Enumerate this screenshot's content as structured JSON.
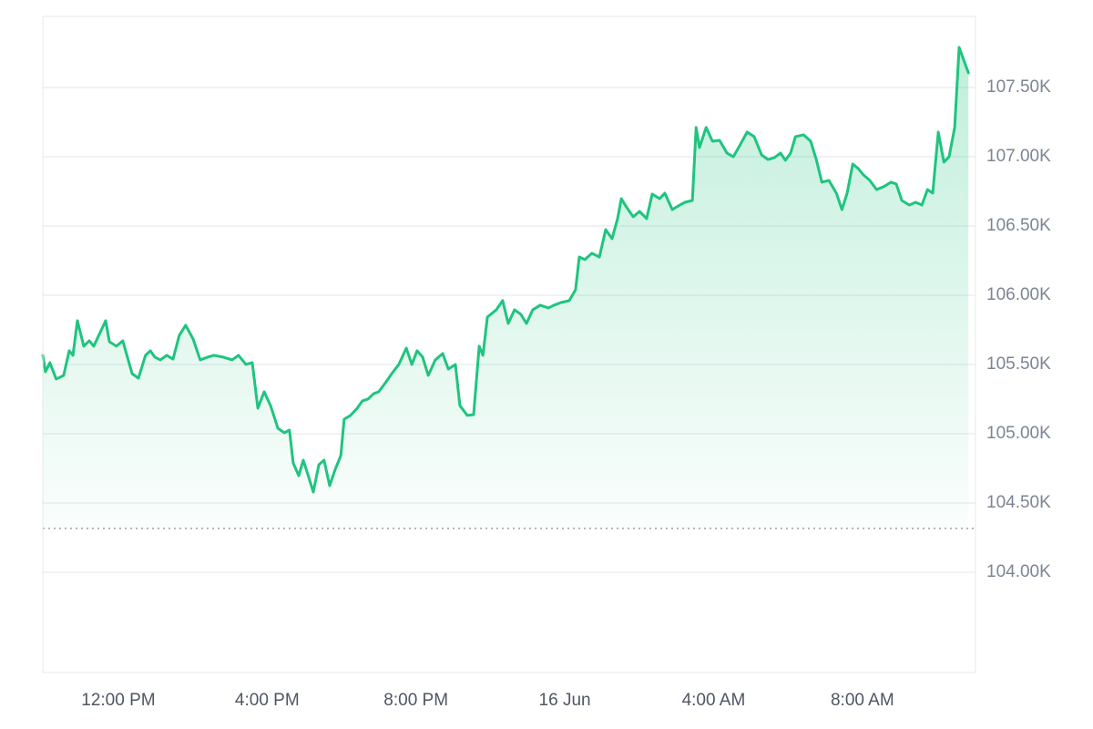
{
  "chart_data": {
    "type": "area",
    "color": "#1fc47f",
    "grid": true,
    "xlim": [
      9.97,
      35.04
    ],
    "ylim": [
      103276,
      108013
    ],
    "baseline": 104316,
    "xticks": [
      {
        "value": 12,
        "label": "12:00 PM"
      },
      {
        "value": 16,
        "label": "4:00 PM"
      },
      {
        "value": 20,
        "label": "8:00 PM"
      },
      {
        "value": 24,
        "label": "16 Jun"
      },
      {
        "value": 28,
        "label": "4:00 AM"
      },
      {
        "value": 32,
        "label": "8:00 AM"
      }
    ],
    "yticks": [
      {
        "value": 104000,
        "label": "104.00K"
      },
      {
        "value": 104500,
        "label": "104.50K"
      },
      {
        "value": 105000,
        "label": "105.00K"
      },
      {
        "value": 105500,
        "label": "105.50K"
      },
      {
        "value": 106000,
        "label": "106.00K"
      },
      {
        "value": 106500,
        "label": "106.50K"
      },
      {
        "value": 107000,
        "label": "107.00K"
      },
      {
        "value": 107500,
        "label": "107.50K"
      }
    ],
    "x": [
      9.97,
      10.04,
      10.16,
      10.33,
      10.53,
      10.68,
      10.78,
      10.9,
      11.07,
      11.22,
      11.34,
      11.51,
      11.66,
      11.76,
      11.95,
      12.12,
      12.37,
      12.54,
      12.73,
      12.86,
      12.98,
      13.13,
      13.3,
      13.47,
      13.64,
      13.81,
      14.01,
      14.2,
      14.4,
      14.57,
      14.82,
      15.06,
      15.23,
      15.43,
      15.6,
      15.75,
      15.92,
      16.09,
      16.29,
      16.46,
      16.6,
      16.7,
      16.85,
      16.97,
      17.09,
      17.24,
      17.39,
      17.53,
      17.68,
      17.83,
      17.98,
      18.07,
      18.24,
      18.42,
      18.56,
      18.71,
      18.86,
      19.0,
      19.18,
      19.35,
      19.54,
      19.74,
      19.89,
      20.03,
      20.18,
      20.33,
      20.52,
      20.72,
      20.87,
      21.06,
      21.18,
      21.38,
      21.55,
      21.7,
      21.8,
      21.92,
      22.16,
      22.33,
      22.48,
      22.65,
      22.82,
      22.97,
      23.14,
      23.34,
      23.56,
      23.71,
      23.9,
      24.12,
      24.29,
      24.39,
      24.54,
      24.73,
      24.93,
      25.1,
      25.27,
      25.42,
      25.52,
      25.67,
      25.84,
      26.01,
      26.2,
      26.35,
      26.55,
      26.69,
      26.89,
      27.09,
      27.23,
      27.43,
      27.53,
      27.62,
      27.8,
      27.97,
      28.16,
      28.36,
      28.53,
      28.7,
      28.9,
      29.09,
      29.29,
      29.46,
      29.63,
      29.8,
      29.93,
      30.07,
      30.2,
      30.42,
      30.61,
      30.76,
      30.91,
      31.1,
      31.3,
      31.45,
      31.59,
      31.74,
      31.89,
      32.03,
      32.2,
      32.38,
      32.57,
      32.77,
      32.91,
      33.06,
      33.26,
      33.43,
      33.6,
      33.75,
      33.89,
      34.04,
      34.19,
      34.33,
      34.48,
      34.6,
      34.85
    ],
    "values": [
      105566,
      105447,
      105513,
      105395,
      105421,
      105599,
      105566,
      105816,
      105632,
      105671,
      105632,
      105730,
      105816,
      105664,
      105632,
      105671,
      105434,
      105401,
      105566,
      105599,
      105553,
      105533,
      105566,
      105539,
      105711,
      105783,
      105684,
      105533,
      105553,
      105566,
      105553,
      105533,
      105566,
      105500,
      105513,
      105184,
      105303,
      105204,
      105039,
      105007,
      105026,
      104789,
      104697,
      104809,
      104710,
      104579,
      104776,
      104809,
      104625,
      104743,
      104842,
      105105,
      105132,
      105184,
      105237,
      105250,
      105289,
      105303,
      105368,
      105434,
      105500,
      105618,
      105500,
      105599,
      105553,
      105421,
      105533,
      105579,
      105467,
      105500,
      105204,
      105132,
      105138,
      105632,
      105566,
      105842,
      105895,
      105961,
      105796,
      105895,
      105862,
      105796,
      105895,
      105928,
      105908,
      105928,
      105947,
      105961,
      106039,
      106276,
      106257,
      106303,
      106276,
      106474,
      106408,
      106553,
      106697,
      106632,
      106566,
      106605,
      106553,
      106730,
      106697,
      106737,
      106618,
      106651,
      106671,
      106684,
      107211,
      107066,
      107211,
      107112,
      107118,
      107026,
      107000,
      107079,
      107178,
      107145,
      107013,
      106980,
      106993,
      107026,
      106974,
      107026,
      107145,
      107158,
      107112,
      106980,
      106816,
      106829,
      106737,
      106618,
      106737,
      106947,
      106914,
      106868,
      106829,
      106763,
      106783,
      106816,
      106803,
      106684,
      106651,
      106671,
      106651,
      106763,
      106737,
      107178,
      106961,
      107000,
      107211,
      107789,
      107605
    ]
  }
}
